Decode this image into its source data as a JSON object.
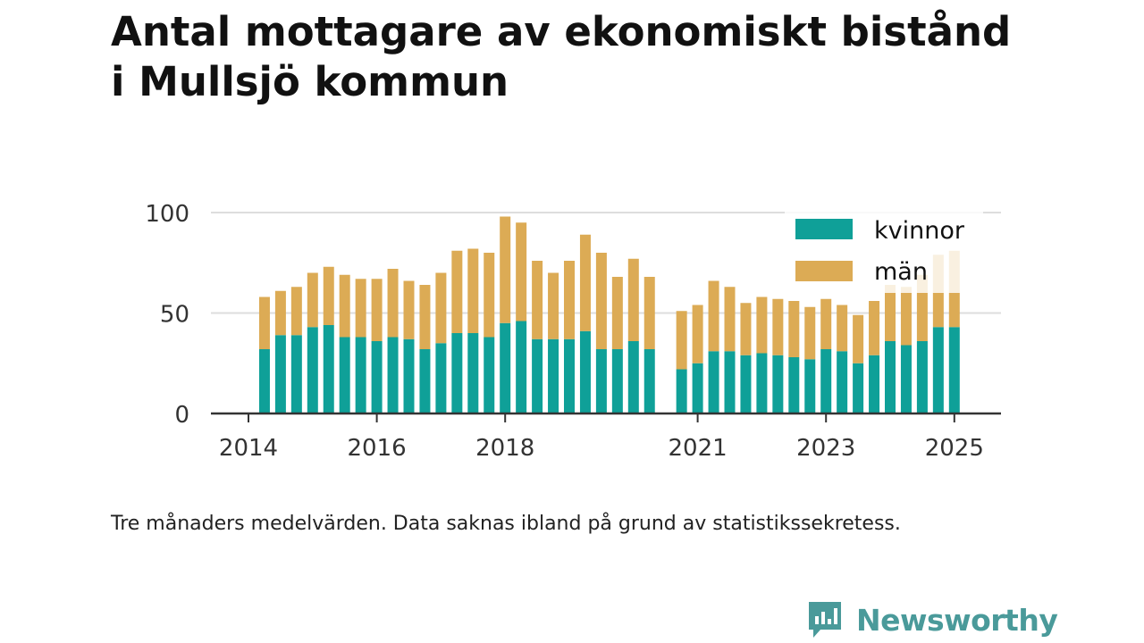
{
  "title_line1": "Antal mottagare av ekonomiskt bistånd",
  "title_line2": "i Mullsjö kommun",
  "note": "Tre månaders medelvärden. Data saknas ibland på grund av statistikssekretess.",
  "brand": "Newsworthy",
  "colors": {
    "kvinnor": "#0fa098",
    "man": "#dcab55",
    "axis": "#333333",
    "grid": "#dddddd",
    "brand": "#4a9a9a"
  },
  "chart_data": {
    "type": "bar",
    "stacked": true,
    "title": "Antal mottagare av ekonomiskt bistånd i Mullsjö kommun",
    "ylim": [
      0,
      100
    ],
    "y_ticks": [
      0,
      50,
      100
    ],
    "x_tick_labels": [
      "2014",
      "2016",
      "2018",
      "2021",
      "2023",
      "2025"
    ],
    "x_tick_years": [
      2014,
      2016,
      2018,
      2021,
      2023,
      2025
    ],
    "grid": "horizontal",
    "legend_position": "top-right",
    "x": [
      2014.25,
      2014.5,
      2014.75,
      2015.0,
      2015.25,
      2015.5,
      2015.75,
      2016.0,
      2016.25,
      2016.5,
      2016.75,
      2017.0,
      2017.25,
      2017.5,
      2017.75,
      2018.0,
      2018.25,
      2018.5,
      2018.75,
      2019.0,
      2019.25,
      2019.5,
      2019.75,
      2020.0,
      2020.25,
      2020.75,
      2021.0,
      2021.25,
      2021.5,
      2021.75,
      2022.0,
      2022.25,
      2022.5,
      2022.75,
      2023.0,
      2023.25,
      2023.5,
      2023.75,
      2024.0,
      2024.25,
      2024.5,
      2024.75,
      2025.0
    ],
    "series": [
      {
        "name": "kvinnor",
        "values": [
          32,
          39,
          39,
          43,
          44,
          38,
          38,
          36,
          38,
          37,
          32,
          35,
          40,
          40,
          38,
          45,
          46,
          37,
          37,
          37,
          41,
          32,
          32,
          36,
          32,
          22,
          25,
          31,
          31,
          29,
          30,
          29,
          28,
          27,
          32,
          31,
          25,
          29,
          36,
          34,
          36,
          43,
          43
        ]
      },
      {
        "name": "män",
        "values": [
          26,
          22,
          24,
          27,
          29,
          31,
          29,
          31,
          34,
          29,
          32,
          35,
          41,
          42,
          42,
          53,
          49,
          39,
          33,
          39,
          48,
          48,
          36,
          41,
          36,
          29,
          29,
          35,
          32,
          26,
          28,
          28,
          28,
          26,
          25,
          23,
          24,
          27,
          28,
          29,
          33,
          36,
          38
        ]
      }
    ]
  }
}
